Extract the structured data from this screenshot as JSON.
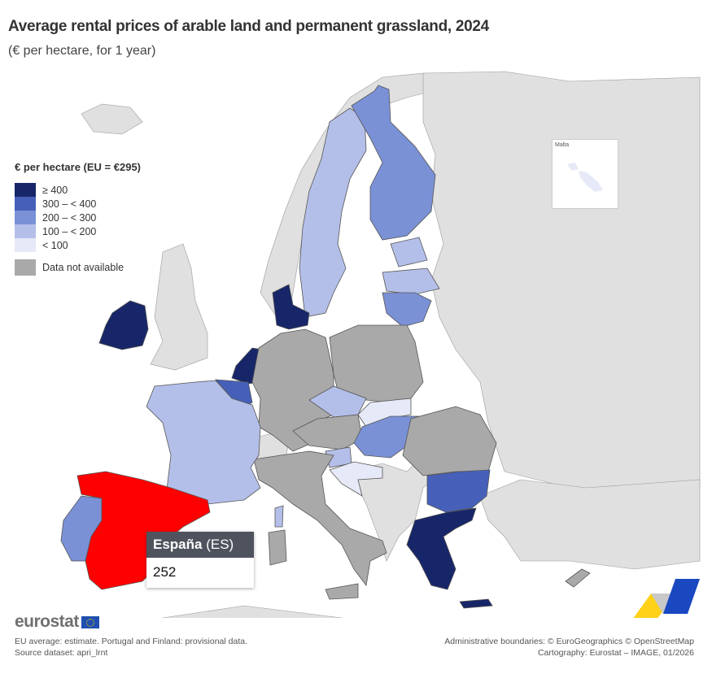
{
  "header": {
    "title": "Average rental prices of arable land and permanent grassland, 2024",
    "subtitle": "(€ per hectare, for 1 year)"
  },
  "legend": {
    "title": "€ per hectare (EU = €295)",
    "classes": [
      {
        "label": "≥ 400",
        "color": "#172668"
      },
      {
        "label": "300 – < 400",
        "color": "#4660b9"
      },
      {
        "label": "200 – < 300",
        "color": "#7a91d6"
      },
      {
        "label": "100 – < 200",
        "color": "#b4bfe9"
      },
      {
        "label": "< 100",
        "color": "#e6e9f7"
      }
    ],
    "not_available": {
      "label": "Data not available",
      "color": "#a9a9a9"
    }
  },
  "colors": {
    "non_eu": "#e0e0e0",
    "selected": "#ff0000",
    "sea": "#ffffff"
  },
  "chart_data": {
    "type": "choropleth",
    "title": "Average rental prices of arable land and permanent grassland, 2024",
    "unit": "€ per hectare, for 1 year",
    "eu_average": 295,
    "selected": {
      "name": "España",
      "code": "ES",
      "value": 252
    },
    "countries": [
      {
        "code": "IE",
        "class": "≥ 400"
      },
      {
        "code": "NL",
        "class": "≥ 400"
      },
      {
        "code": "DK",
        "class": "≥ 400"
      },
      {
        "code": "EL",
        "class": "≥ 400"
      },
      {
        "code": "BE",
        "class": "300 – < 400"
      },
      {
        "code": "BG",
        "class": "300 – < 400"
      },
      {
        "code": "FI",
        "class": "200 – < 300"
      },
      {
        "code": "LT",
        "class": "200 – < 300"
      },
      {
        "code": "HU",
        "class": "200 – < 300"
      },
      {
        "code": "PT",
        "class": "200 – < 300"
      },
      {
        "code": "ES",
        "class": "200 – < 300"
      },
      {
        "code": "SE",
        "class": "100 – < 200"
      },
      {
        "code": "EE",
        "class": "100 – < 200"
      },
      {
        "code": "LV",
        "class": "100 – < 200"
      },
      {
        "code": "FR",
        "class": "100 – < 200"
      },
      {
        "code": "CZ",
        "class": "100 – < 200"
      },
      {
        "code": "SI",
        "class": "100 – < 200"
      },
      {
        "code": "SK",
        "class": "< 100"
      },
      {
        "code": "HR",
        "class": "< 100"
      },
      {
        "code": "MT",
        "class": "< 100"
      },
      {
        "code": "DE",
        "class": "Data not available"
      },
      {
        "code": "PL",
        "class": "Data not available"
      },
      {
        "code": "AT",
        "class": "Data not available"
      },
      {
        "code": "IT",
        "class": "Data not available"
      },
      {
        "code": "RO",
        "class": "Data not available"
      },
      {
        "code": "CY",
        "class": "Data not available"
      }
    ]
  },
  "inset": {
    "label": "Malta"
  },
  "tooltip": {
    "country": "España",
    "code": "(ES)",
    "value": "252"
  },
  "footer": {
    "logo": "eurostat",
    "note1": "EU average: estimate. Portugal and Finland: provisional data.",
    "note2": "Source dataset: apri_lrnt",
    "credit1": "Administrative boundaries: © EuroGeographics © OpenStreetMap",
    "credit2": "Cartography: Eurostat – IMAGE, 01/2026"
  }
}
